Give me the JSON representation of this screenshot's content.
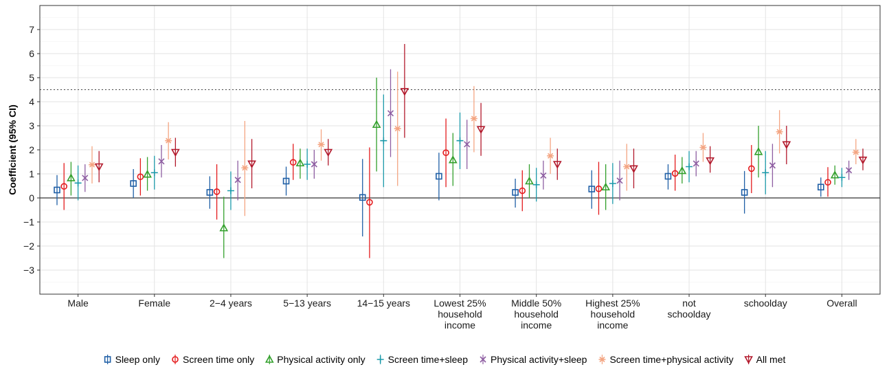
{
  "chart_data": {
    "type": "scatter",
    "title": "",
    "xlabel": "",
    "ylabel": "Coefficient (95% CI)",
    "ylim": [
      -4.0,
      8.0
    ],
    "yticks": [
      -3,
      -2,
      -1,
      0,
      1,
      2,
      3,
      4,
      5,
      6,
      7
    ],
    "reference_line": 4.5,
    "zero_line": 0,
    "grid": true,
    "legend_position": "bottom",
    "categories": [
      [
        "Male"
      ],
      [
        "Female"
      ],
      [
        "2−4 years"
      ],
      [
        "5−13 years"
      ],
      [
        "14−15 years"
      ],
      [
        "Lowest 25%",
        "household",
        "income"
      ],
      [
        "Middle 50%",
        "household",
        "income"
      ],
      [
        "Highest 25%",
        "household",
        "income"
      ],
      [
        "not",
        "schoolday"
      ],
      [
        "schoolday"
      ],
      [
        "Overall"
      ]
    ],
    "series": [
      {
        "name": "Sleep only",
        "color": "#1f5fa6",
        "marker": "square",
        "values": [
          0.33,
          0.6,
          0.23,
          0.7,
          0.02,
          0.9,
          0.23,
          0.37,
          0.9,
          0.23,
          0.45
        ],
        "lower": [
          -0.3,
          0.0,
          -0.45,
          0.1,
          -1.6,
          -0.1,
          -0.4,
          -0.45,
          0.35,
          -0.65,
          0.05
        ],
        "upper": [
          0.95,
          1.2,
          0.9,
          1.3,
          1.62,
          1.88,
          0.8,
          1.15,
          1.4,
          1.12,
          0.85
        ]
      },
      {
        "name": "Screen time only",
        "color": "#e41a1c",
        "marker": "circle",
        "values": [
          0.48,
          0.88,
          0.26,
          1.48,
          -0.18,
          1.88,
          0.3,
          0.38,
          1.02,
          1.22,
          0.65
        ],
        "lower": [
          -0.5,
          0.1,
          -0.9,
          0.75,
          -2.5,
          0.45,
          -0.55,
          -0.7,
          0.3,
          0.2,
          0.05
        ],
        "upper": [
          1.45,
          1.65,
          1.4,
          2.25,
          2.1,
          3.3,
          1.15,
          1.5,
          1.8,
          2.2,
          1.28
        ]
      },
      {
        "name": "Physical activity only",
        "color": "#33a02c",
        "marker": "triangle-up",
        "values": [
          0.83,
          0.98,
          -1.25,
          1.45,
          3.05,
          1.58,
          0.7,
          0.45,
          1.13,
          1.92,
          0.95
        ],
        "lower": [
          0.1,
          0.3,
          -2.5,
          0.8,
          1.1,
          0.5,
          0.0,
          -0.5,
          0.6,
          0.85,
          0.55
        ],
        "upper": [
          1.5,
          1.7,
          0.05,
          2.05,
          5.0,
          2.7,
          1.4,
          1.4,
          1.7,
          3.0,
          1.35
        ]
      },
      {
        "name": "Screen time+sleep",
        "color": "#1b9aaa",
        "marker": "plus",
        "values": [
          0.62,
          1.05,
          0.3,
          1.4,
          2.38,
          2.38,
          0.55,
          0.6,
          1.3,
          1.05,
          0.85
        ],
        "lower": [
          -0.1,
          0.35,
          -0.5,
          0.75,
          0.45,
          1.2,
          -0.15,
          -0.25,
          0.65,
          0.15,
          0.45
        ],
        "upper": [
          1.35,
          1.75,
          1.1,
          2.05,
          4.3,
          3.55,
          1.25,
          1.45,
          1.95,
          1.95,
          1.25
        ]
      },
      {
        "name": "Physical activity+sleep",
        "color": "#8e5ea2",
        "marker": "x",
        "values": [
          0.83,
          1.52,
          0.75,
          1.4,
          3.52,
          2.23,
          0.93,
          0.72,
          1.43,
          1.35,
          1.15
        ],
        "lower": [
          0.25,
          0.85,
          -0.1,
          0.8,
          1.7,
          1.2,
          0.35,
          -0.1,
          0.9,
          0.45,
          0.75
        ],
        "upper": [
          1.4,
          2.2,
          1.55,
          2.0,
          5.35,
          3.25,
          1.55,
          1.55,
          1.95,
          2.25,
          1.55
        ]
      },
      {
        "name": "Screen time+physical activity",
        "color": "#f4a582",
        "marker": "asterisk",
        "values": [
          1.38,
          2.38,
          1.25,
          2.22,
          2.88,
          3.3,
          1.75,
          1.3,
          2.1,
          2.75,
          1.9
        ],
        "lower": [
          0.6,
          1.6,
          -0.75,
          1.55,
          0.5,
          1.9,
          1.0,
          0.3,
          1.5,
          1.85,
          1.4
        ],
        "upper": [
          2.15,
          3.15,
          3.2,
          2.85,
          5.25,
          4.65,
          2.5,
          2.25,
          2.7,
          3.65,
          2.45
        ]
      },
      {
        "name": "All met",
        "color": "#b2182b",
        "marker": "triangle-down",
        "values": [
          1.3,
          1.9,
          1.42,
          1.9,
          4.43,
          2.85,
          1.4,
          1.22,
          1.55,
          2.22,
          1.58
        ],
        "lower": [
          0.65,
          1.3,
          0.4,
          1.35,
          2.5,
          1.75,
          0.75,
          0.4,
          1.05,
          1.4,
          1.15
        ],
        "upper": [
          1.95,
          2.5,
          2.45,
          2.45,
          6.4,
          3.95,
          2.05,
          2.05,
          2.15,
          3.0,
          2.05
        ]
      }
    ]
  }
}
